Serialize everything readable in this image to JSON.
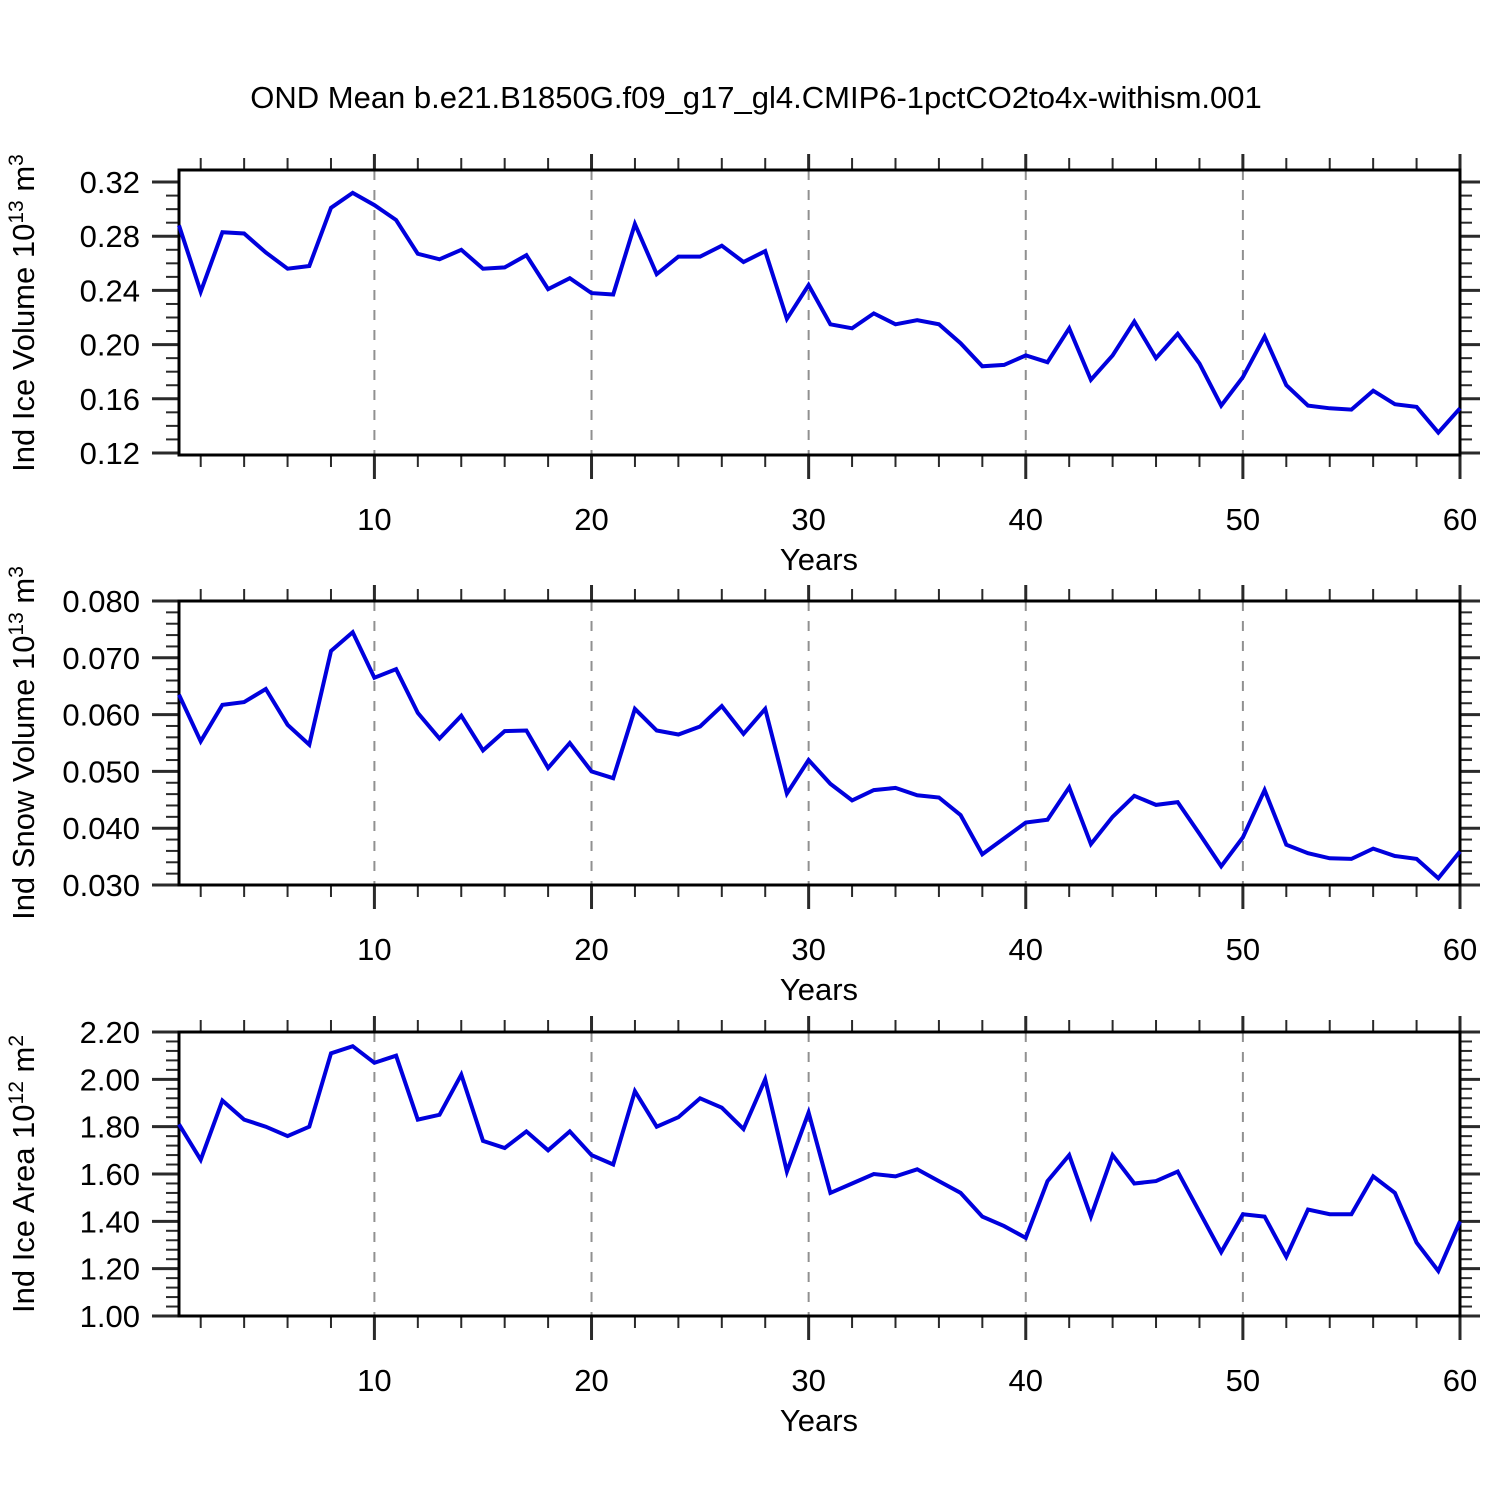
{
  "title": "OND Mean b.e21.B1850G.f09_g17_gl4.CMIP6-1pctCO2to4x-withism.001",
  "line_color": "#0000dd",
  "grid_color": "#909090",
  "axis_color": "#000000",
  "tick_color": "#2a2a2a",
  "x_axis": {
    "label": "Years",
    "tick_values": [
      10,
      20,
      30,
      40,
      50,
      60
    ],
    "tick_labels": [
      "10",
      "20",
      "30",
      "40",
      "50",
      "60"
    ],
    "minor_step": 2,
    "range": [
      1,
      60
    ],
    "gridlines": [
      10,
      20,
      30,
      40,
      50
    ],
    "years": [
      1,
      2,
      3,
      4,
      5,
      6,
      7,
      8,
      9,
      10,
      11,
      12,
      13,
      14,
      15,
      16,
      17,
      18,
      19,
      20,
      21,
      22,
      23,
      24,
      25,
      26,
      27,
      28,
      29,
      30,
      31,
      32,
      33,
      34,
      35,
      36,
      37,
      38,
      39,
      40,
      41,
      42,
      43,
      44,
      45,
      46,
      47,
      48,
      49,
      50,
      51,
      52,
      53,
      54,
      55,
      56,
      57,
      58,
      59,
      60
    ]
  },
  "chart_data": [
    {
      "type": "line",
      "name": "ind-ice-volume",
      "ylabel_base": "Ind Ice Volume 10",
      "ylabel_sup": "13",
      "ylabel_unit": " m",
      "ylabel_unit_sup": "3",
      "ytick_values": [
        0.12,
        0.16,
        0.2,
        0.24,
        0.28,
        0.32
      ],
      "ytick_labels": [
        "0.12",
        "0.16",
        "0.20",
        "0.24",
        "0.28",
        "0.32"
      ],
      "yminor_step": 0.01,
      "ylim": [
        0.1185,
        0.3289
      ],
      "values": [
        0.288,
        0.239,
        0.283,
        0.282,
        0.268,
        0.256,
        0.258,
        0.301,
        0.312,
        0.303,
        0.292,
        0.267,
        0.263,
        0.27,
        0.256,
        0.257,
        0.266,
        0.241,
        0.249,
        0.238,
        0.237,
        0.289,
        0.252,
        0.265,
        0.265,
        0.273,
        0.261,
        0.269,
        0.219,
        0.244,
        0.215,
        0.212,
        0.223,
        0.215,
        0.218,
        0.215,
        0.201,
        0.184,
        0.185,
        0.192,
        0.187,
        0.212,
        0.174,
        0.192,
        0.217,
        0.19,
        0.208,
        0.186,
        0.155,
        0.176,
        0.206,
        0.17,
        0.155,
        0.153,
        0.152,
        0.166,
        0.156,
        0.154,
        0.135,
        0.153
      ]
    },
    {
      "type": "line",
      "name": "ind-snow-volume",
      "ylabel_base": "Ind Snow Volume 10",
      "ylabel_sup": "13",
      "ylabel_unit": " m",
      "ylabel_unit_sup": "3",
      "ytick_values": [
        0.03,
        0.04,
        0.05,
        0.06,
        0.07,
        0.08
      ],
      "ytick_labels": [
        "0.030",
        "0.040",
        "0.050",
        "0.060",
        "0.070",
        "0.080"
      ],
      "yminor_step": 0.002,
      "ylim": [
        0.03,
        0.08
      ],
      "values": [
        0.0635,
        0.0553,
        0.0617,
        0.0622,
        0.0645,
        0.0582,
        0.0547,
        0.0712,
        0.0745,
        0.0665,
        0.068,
        0.0603,
        0.0558,
        0.0598,
        0.0537,
        0.0571,
        0.0572,
        0.0506,
        0.055,
        0.05,
        0.0488,
        0.061,
        0.0572,
        0.0565,
        0.0579,
        0.0615,
        0.0566,
        0.061,
        0.0461,
        0.052,
        0.0478,
        0.0449,
        0.0467,
        0.0471,
        0.0458,
        0.0454,
        0.0423,
        0.0354,
        0.0382,
        0.041,
        0.0415,
        0.0472,
        0.0372,
        0.042,
        0.0457,
        0.0441,
        0.0446,
        0.039,
        0.0333,
        0.0384,
        0.0467,
        0.0371,
        0.0356,
        0.0347,
        0.0346,
        0.0364,
        0.0351,
        0.0346,
        0.0312,
        0.0359
      ]
    },
    {
      "type": "line",
      "name": "ind-ice-area",
      "ylabel_base": "Ind Ice Area 10",
      "ylabel_sup": "12",
      "ylabel_unit": " m",
      "ylabel_unit_sup": "2",
      "ytick_values": [
        1.0,
        1.2,
        1.4,
        1.6,
        1.8,
        2.0,
        2.2
      ],
      "ytick_labels": [
        "1.00",
        "1.20",
        "1.40",
        "1.60",
        "1.80",
        "2.00",
        "2.20"
      ],
      "yminor_step": 0.04,
      "ylim": [
        1.0,
        2.2
      ],
      "values": [
        1.81,
        1.66,
        1.91,
        1.83,
        1.8,
        1.76,
        1.8,
        2.11,
        2.14,
        2.07,
        2.1,
        1.83,
        1.85,
        2.02,
        1.74,
        1.71,
        1.78,
        1.7,
        1.78,
        1.68,
        1.64,
        1.95,
        1.8,
        1.84,
        1.92,
        1.88,
        1.79,
        2.0,
        1.61,
        1.86,
        1.52,
        1.56,
        1.6,
        1.59,
        1.62,
        1.57,
        1.52,
        1.42,
        1.38,
        1.33,
        1.57,
        1.68,
        1.42,
        1.68,
        1.56,
        1.57,
        1.61,
        1.44,
        1.27,
        1.43,
        1.42,
        1.25,
        1.45,
        1.43,
        1.43,
        1.59,
        1.52,
        1.31,
        1.19,
        1.4
      ]
    }
  ]
}
